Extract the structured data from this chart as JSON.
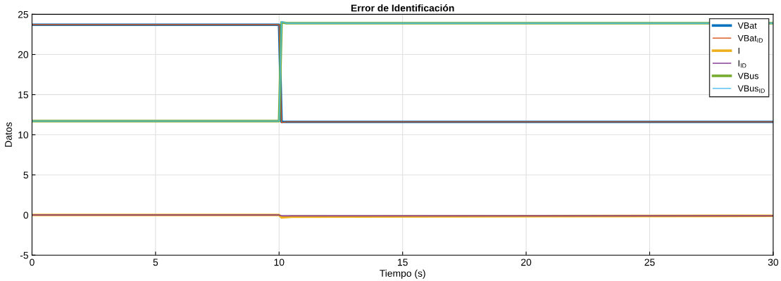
{
  "chart_data": {
    "type": "line",
    "title": "Error de Identificación",
    "xlabel": "Tiempo (s)",
    "ylabel": "Datos",
    "xlim": [
      0,
      30
    ],
    "xticks": [
      0,
      5,
      10,
      15,
      20,
      25,
      30
    ],
    "ylim": [
      -5,
      25
    ],
    "yticks": [
      -5,
      0,
      5,
      10,
      15,
      20,
      25
    ],
    "grid": true,
    "legend": "top right",
    "series": [
      {
        "name": "VBat",
        "color": "#0072bd",
        "x": [
          0,
          10,
          10.1,
          10.3,
          30
        ],
        "values": [
          23.7,
          23.7,
          11.6,
          11.6,
          11.6
        ]
      },
      {
        "name": "VBat$_{ID}$",
        "color": "#d95319",
        "x": [
          0,
          10,
          10.1,
          10.3,
          30
        ],
        "values": [
          23.7,
          23.7,
          11.5,
          11.6,
          11.6
        ]
      },
      {
        "name": "I",
        "color": "#edb120",
        "x": [
          0,
          10,
          10.1,
          10.5,
          30
        ],
        "values": [
          0,
          0,
          -0.3,
          -0.2,
          -0.1
        ]
      },
      {
        "name": "I$_{ID}$",
        "color": "#7e2f8e",
        "x": [
          0,
          10,
          10.1,
          10.5,
          30
        ],
        "values": [
          0,
          0,
          -0.1,
          -0.1,
          -0.1
        ]
      },
      {
        "name": "VBus",
        "color": "#77ac30",
        "x": [
          0,
          10,
          10.1,
          10.3,
          30
        ],
        "values": [
          11.7,
          11.7,
          24.0,
          23.9,
          23.9
        ]
      },
      {
        "name": "VBus$_{ID}$",
        "color": "#4dbeee",
        "x": [
          0,
          10,
          10.1,
          10.3,
          30
        ],
        "values": [
          11.7,
          11.7,
          24.1,
          23.9,
          23.9
        ]
      }
    ]
  }
}
